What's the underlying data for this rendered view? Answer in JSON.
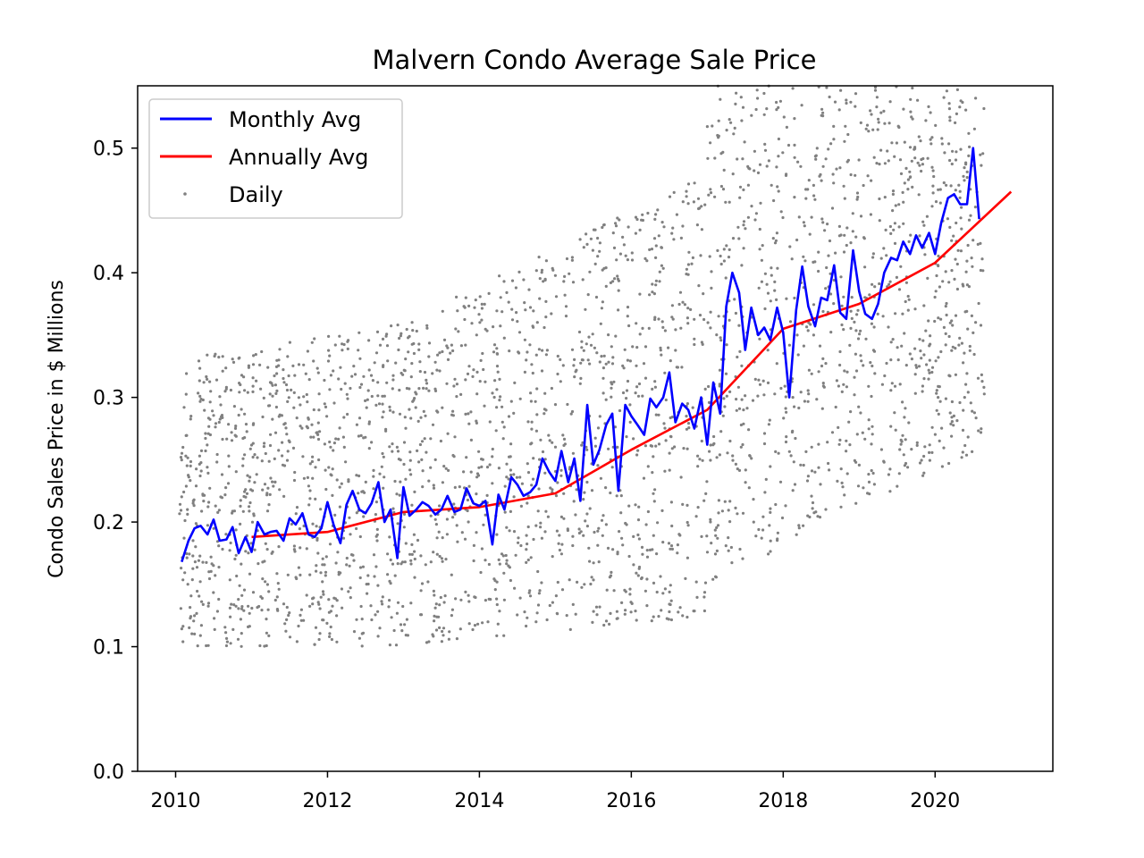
{
  "chart_data": {
    "type": "line",
    "title": "Malvern Condo Average Sale Price",
    "xlabel": "",
    "ylabel": "Condo Sales Price in $ Millions",
    "xlim": [
      2009.5,
      2021.55
    ],
    "ylim": [
      0.0,
      0.55
    ],
    "x_ticks": [
      2010,
      2012,
      2014,
      2016,
      2018,
      2020
    ],
    "y_ticks": [
      0.0,
      0.1,
      0.2,
      0.3,
      0.4,
      0.5
    ],
    "x_tick_labels": [
      "2010",
      "2012",
      "2014",
      "2016",
      "2018",
      "2020"
    ],
    "y_tick_labels": [
      "0.0",
      "0.1",
      "0.2",
      "0.3",
      "0.4",
      "0.5"
    ],
    "grid": false,
    "legend_position": "top-left",
    "series": [
      {
        "name": "Monthly Avg",
        "type": "line",
        "color": "#0000ff",
        "x": [
          2010.08,
          2010.17,
          2010.25,
          2010.33,
          2010.42,
          2010.5,
          2010.58,
          2010.67,
          2010.75,
          2010.83,
          2010.92,
          2011.0,
          2011.08,
          2011.17,
          2011.25,
          2011.33,
          2011.42,
          2011.5,
          2011.58,
          2011.67,
          2011.75,
          2011.83,
          2011.92,
          2012.0,
          2012.08,
          2012.17,
          2012.25,
          2012.33,
          2012.42,
          2012.5,
          2012.58,
          2012.67,
          2012.75,
          2012.83,
          2012.92,
          2013.0,
          2013.08,
          2013.17,
          2013.25,
          2013.33,
          2013.42,
          2013.5,
          2013.58,
          2013.67,
          2013.75,
          2013.83,
          2013.92,
          2014.0,
          2014.08,
          2014.17,
          2014.25,
          2014.33,
          2014.42,
          2014.5,
          2014.58,
          2014.67,
          2014.75,
          2014.83,
          2014.92,
          2015.0,
          2015.08,
          2015.17,
          2015.25,
          2015.33,
          2015.42,
          2015.5,
          2015.58,
          2015.67,
          2015.75,
          2015.83,
          2015.92,
          2016.0,
          2016.08,
          2016.17,
          2016.25,
          2016.33,
          2016.42,
          2016.5,
          2016.58,
          2016.67,
          2016.75,
          2016.83,
          2016.92,
          2017.0,
          2017.08,
          2017.17,
          2017.25,
          2017.33,
          2017.42,
          2017.5,
          2017.58,
          2017.67,
          2017.75,
          2017.83,
          2017.92,
          2018.0,
          2018.08,
          2018.17,
          2018.25,
          2018.33,
          2018.42,
          2018.5,
          2018.58,
          2018.67,
          2018.75,
          2018.83,
          2018.92,
          2019.0,
          2019.08,
          2019.17,
          2019.25,
          2019.33,
          2019.42,
          2019.5,
          2019.58,
          2019.67,
          2019.75,
          2019.83,
          2019.92,
          2020.0,
          2020.08,
          2020.17,
          2020.25,
          2020.33,
          2020.42,
          2020.5,
          2020.58
        ],
        "y": [
          0.168,
          0.185,
          0.195,
          0.197,
          0.19,
          0.202,
          0.185,
          0.186,
          0.196,
          0.175,
          0.188,
          0.176,
          0.2,
          0.19,
          0.192,
          0.193,
          0.185,
          0.203,
          0.198,
          0.207,
          0.19,
          0.188,
          0.195,
          0.216,
          0.198,
          0.183,
          0.214,
          0.225,
          0.21,
          0.207,
          0.215,
          0.232,
          0.2,
          0.21,
          0.171,
          0.228,
          0.205,
          0.21,
          0.216,
          0.213,
          0.206,
          0.21,
          0.221,
          0.208,
          0.21,
          0.227,
          0.215,
          0.213,
          0.217,
          0.182,
          0.222,
          0.21,
          0.236,
          0.23,
          0.221,
          0.224,
          0.23,
          0.251,
          0.24,
          0.233,
          0.257,
          0.232,
          0.251,
          0.217,
          0.294,
          0.246,
          0.258,
          0.278,
          0.287,
          0.225,
          0.294,
          0.285,
          0.278,
          0.27,
          0.299,
          0.292,
          0.3,
          0.32,
          0.28,
          0.295,
          0.29,
          0.275,
          0.3,
          0.262,
          0.312,
          0.287,
          0.373,
          0.4,
          0.384,
          0.338,
          0.372,
          0.35,
          0.356,
          0.346,
          0.372,
          0.352,
          0.3,
          0.37,
          0.405,
          0.373,
          0.357,
          0.38,
          0.378,
          0.406,
          0.368,
          0.363,
          0.418,
          0.385,
          0.367,
          0.363,
          0.375,
          0.4,
          0.412,
          0.41,
          0.425,
          0.415,
          0.43,
          0.42,
          0.432,
          0.415,
          0.44,
          0.46,
          0.463,
          0.455,
          0.455,
          0.5,
          0.443
        ]
      },
      {
        "name": "Annually Avg",
        "type": "line",
        "color": "#ff0000",
        "x": [
          2011,
          2012,
          2013,
          2014,
          2015,
          2016,
          2017,
          2018,
          2019,
          2020,
          2021
        ],
        "y": [
          0.188,
          0.192,
          0.208,
          0.212,
          0.223,
          0.258,
          0.29,
          0.355,
          0.375,
          0.408,
          0.465
        ]
      },
      {
        "name": "Daily",
        "type": "scatter",
        "color": "#808080",
        "points": "estimated — ~3000 scattered daily sale prices; see script for the generated approximation"
      }
    ]
  }
}
